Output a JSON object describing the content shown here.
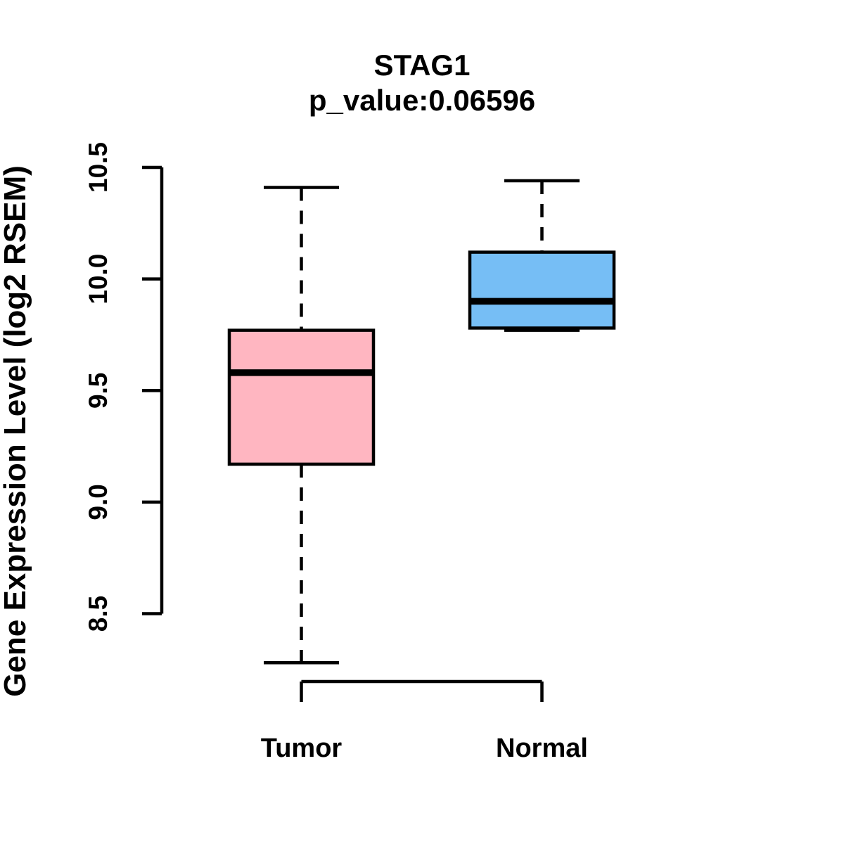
{
  "chart_data": {
    "type": "box",
    "title": "STAG1",
    "subtitle": "p_value:0.06596",
    "ylabel": "Gene Expression Level (log2 RSEM)",
    "xlabel": "",
    "categories": [
      "Tumor",
      "Normal"
    ],
    "ytick_labels": [
      "8.5",
      "9.0",
      "9.5",
      "10.0",
      "10.5"
    ],
    "ylim": [
      8.5,
      10.5
    ],
    "grid": false,
    "legend": "none",
    "series": [
      {
        "name": "Tumor",
        "whisker_low": 8.28,
        "q1": 9.17,
        "median": 9.58,
        "q3": 9.77,
        "whisker_high": 10.41,
        "fill_color": "#FFB6C1"
      },
      {
        "name": "Normal",
        "whisker_low": 9.77,
        "q1": 9.78,
        "median": 9.9,
        "q3": 10.12,
        "whisker_high": 10.44,
        "fill_color": "#76BEF5"
      }
    ],
    "line_color": "#000000",
    "background_color": "#FFFFFF"
  }
}
